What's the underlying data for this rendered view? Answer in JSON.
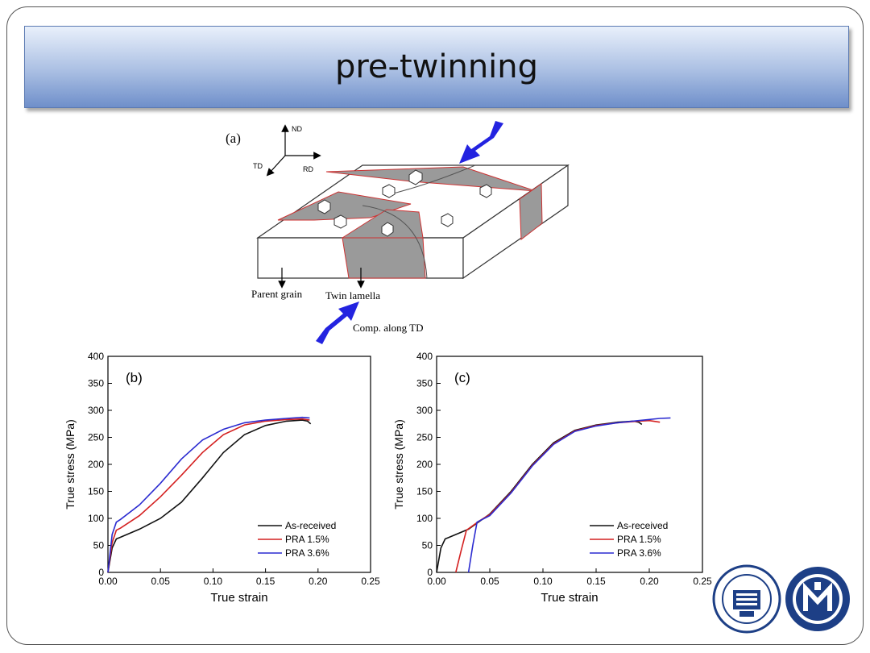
{
  "slide": {
    "title": "pre-twinning"
  },
  "schematic": {
    "panel_label": "(a)",
    "axis_nd": "ND",
    "axis_td": "TD",
    "axis_rd": "RD",
    "parent_grain": "Parent grain",
    "twin_lamella": "Twin lamella",
    "comp": "Comp. along TD"
  },
  "chart_data": [
    {
      "type": "line",
      "panel_label": "(b)",
      "xlabel": "True strain",
      "ylabel": "True stress (MPa)",
      "xlim": [
        0,
        0.25
      ],
      "ylim": [
        0,
        400
      ],
      "xticks": [
        "0.00",
        "0.05",
        "0.10",
        "0.15",
        "0.20",
        "0.25"
      ],
      "yticks": [
        "0",
        "50",
        "100",
        "150",
        "200",
        "250",
        "300",
        "350",
        "400"
      ],
      "legend_position": "bottom-right",
      "series": [
        {
          "name": "As-received",
          "color": "#111111",
          "x": [
            0,
            0.004,
            0.008,
            0.012,
            0.03,
            0.05,
            0.07,
            0.09,
            0.11,
            0.13,
            0.15,
            0.17,
            0.185,
            0.19,
            0.193
          ],
          "y": [
            0,
            45,
            62,
            65,
            80,
            100,
            130,
            175,
            222,
            255,
            272,
            280,
            282,
            280,
            275
          ]
        },
        {
          "name": "PRA 1.5%",
          "color": "#d42020",
          "x": [
            0,
            0.004,
            0.008,
            0.012,
            0.03,
            0.05,
            0.07,
            0.09,
            0.11,
            0.13,
            0.15,
            0.17,
            0.185,
            0.192
          ],
          "y": [
            0,
            55,
            78,
            82,
            105,
            140,
            180,
            222,
            255,
            273,
            280,
            283,
            284,
            282
          ]
        },
        {
          "name": "PRA 3.6%",
          "color": "#2b2bd0",
          "x": [
            0,
            0.004,
            0.008,
            0.012,
            0.03,
            0.05,
            0.07,
            0.09,
            0.11,
            0.13,
            0.15,
            0.17,
            0.185,
            0.192
          ],
          "y": [
            0,
            70,
            93,
            98,
            125,
            165,
            210,
            245,
            265,
            277,
            282,
            285,
            287,
            286
          ]
        }
      ]
    },
    {
      "type": "line",
      "panel_label": "(c)",
      "xlabel": "True strain",
      "ylabel": "True stress (MPa)",
      "xlim": [
        0,
        0.25
      ],
      "ylim": [
        0,
        400
      ],
      "xticks": [
        "0.00",
        "0.05",
        "0.10",
        "0.15",
        "0.20",
        "0.25"
      ],
      "yticks": [
        "0",
        "50",
        "100",
        "150",
        "200",
        "250",
        "300",
        "350",
        "400"
      ],
      "legend_position": "bottom-right",
      "series": [
        {
          "name": "As-received",
          "color": "#111111",
          "x": [
            0,
            0.004,
            0.008,
            0.012,
            0.03,
            0.05,
            0.07,
            0.09,
            0.11,
            0.13,
            0.15,
            0.17,
            0.185,
            0.19,
            0.193
          ],
          "y": [
            0,
            45,
            62,
            65,
            80,
            108,
            150,
            200,
            240,
            263,
            273,
            278,
            280,
            278,
            274
          ]
        },
        {
          "name": "PRA 1.5%",
          "color": "#d42020",
          "x": [
            0.018,
            0.023,
            0.028,
            0.04,
            0.05,
            0.07,
            0.09,
            0.11,
            0.13,
            0.15,
            0.17,
            0.19,
            0.2,
            0.21
          ],
          "y": [
            0,
            40,
            78,
            95,
            107,
            148,
            198,
            238,
            262,
            272,
            277,
            280,
            281,
            278
          ]
        },
        {
          "name": "PRA 3.6%",
          "color": "#2b2bd0",
          "x": [
            0.03,
            0.034,
            0.038,
            0.05,
            0.07,
            0.09,
            0.11,
            0.13,
            0.15,
            0.17,
            0.19,
            0.21,
            0.22
          ],
          "y": [
            0,
            50,
            93,
            105,
            147,
            197,
            237,
            261,
            271,
            277,
            281,
            285,
            286
          ]
        }
      ]
    }
  ]
}
